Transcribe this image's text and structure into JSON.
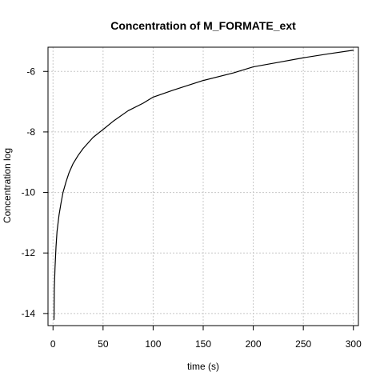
{
  "chart_data": {
    "type": "line",
    "title": "Concentration of M_FORMATE_ext",
    "xlabel": "time (s)",
    "ylabel": "Concentration log",
    "xlim": [
      -5,
      305
    ],
    "ylim": [
      -14.4,
      -5.2
    ],
    "x_ticks": [
      0,
      50,
      100,
      150,
      200,
      250,
      300
    ],
    "y_ticks": [
      -14,
      -12,
      -10,
      -8,
      -6
    ],
    "x_tick_labels": [
      "0",
      "50",
      "100",
      "150",
      "200",
      "250",
      "300"
    ],
    "y_tick_labels": [
      "-14",
      "-12",
      "-10",
      "-8",
      "-6"
    ],
    "grid": true,
    "legend": false,
    "series": [
      {
        "color": "#000000",
        "x": [
          1,
          1.3,
          2,
          3,
          4,
          6,
          8,
          10,
          13,
          16,
          20,
          25,
          30,
          40,
          50,
          60,
          75,
          90,
          100,
          120,
          150,
          180,
          200,
          225,
          250,
          275,
          300
        ],
        "y": [
          -14.2,
          -13.2,
          -12.5,
          -11.8,
          -11.3,
          -10.75,
          -10.35,
          -10.0,
          -9.65,
          -9.35,
          -9.05,
          -8.78,
          -8.55,
          -8.18,
          -7.92,
          -7.65,
          -7.3,
          -7.05,
          -6.85,
          -6.62,
          -6.3,
          -6.05,
          -5.85,
          -5.7,
          -5.55,
          -5.42,
          -5.3
        ]
      }
    ]
  }
}
